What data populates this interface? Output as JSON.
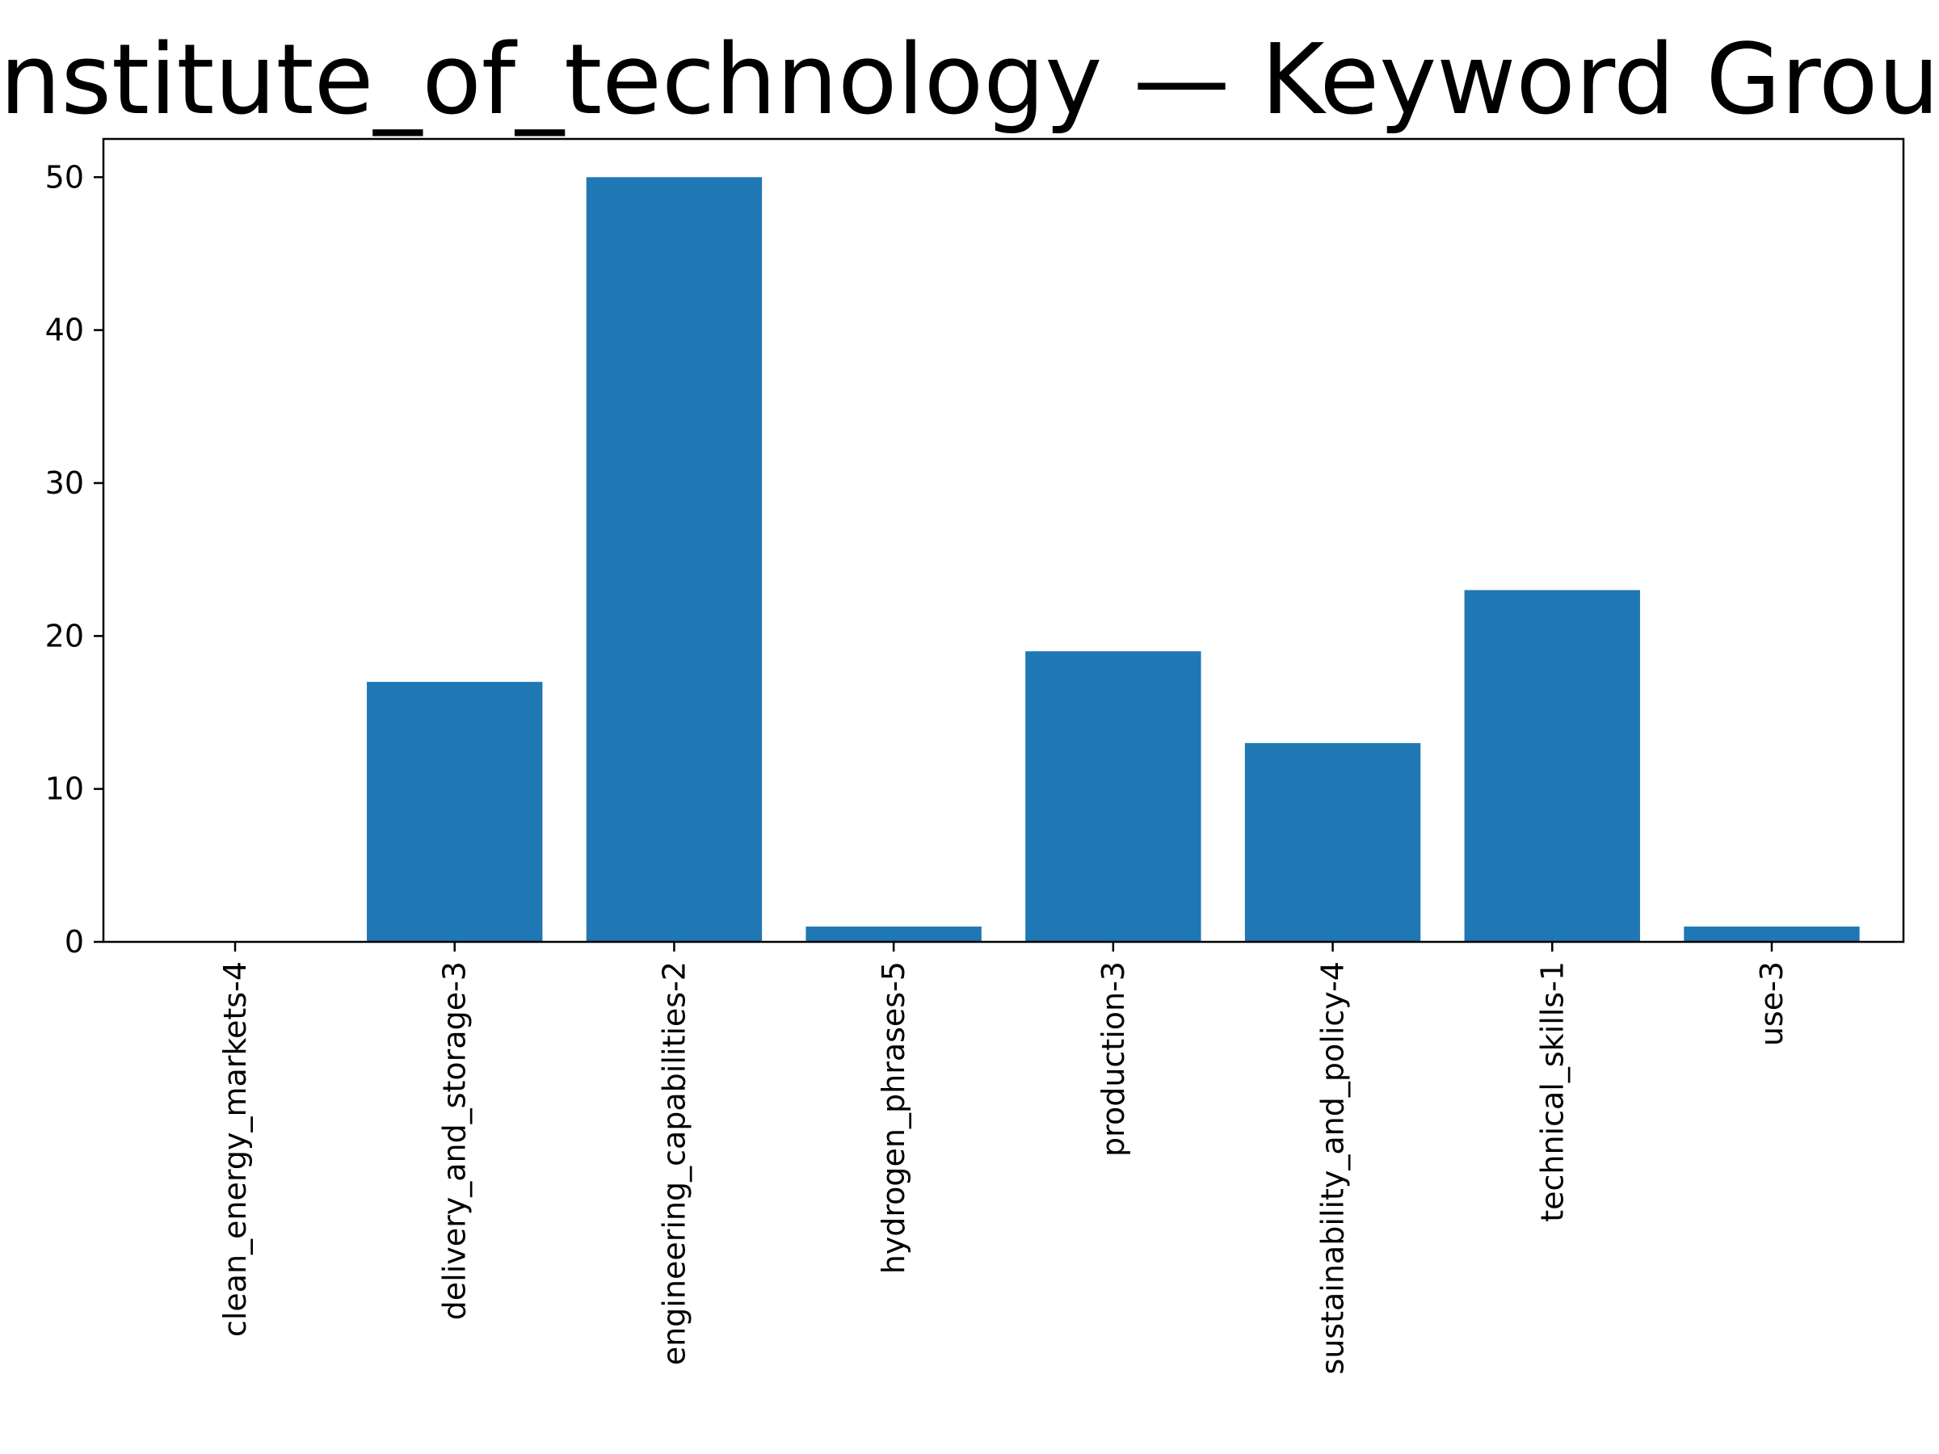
{
  "chart_data": {
    "type": "bar",
    "title": "nstitute_of_technology — Keyword Grou",
    "xlabel": "",
    "ylabel": "",
    "categories": [
      "clean_energy_markets-4",
      "delivery_and_storage-3",
      "engineering_capabilities-2",
      "hydrogen_phrases-5",
      "production-3",
      "sustainability_and_policy-4",
      "technical_skills-1",
      "use-3"
    ],
    "values": [
      0,
      17,
      50,
      1,
      19,
      13,
      23,
      1
    ],
    "ylim": [
      0,
      52.5
    ],
    "yticks": [
      0,
      10,
      20,
      30,
      40,
      50
    ],
    "grid": false,
    "bar_color": "#1f77b4"
  }
}
